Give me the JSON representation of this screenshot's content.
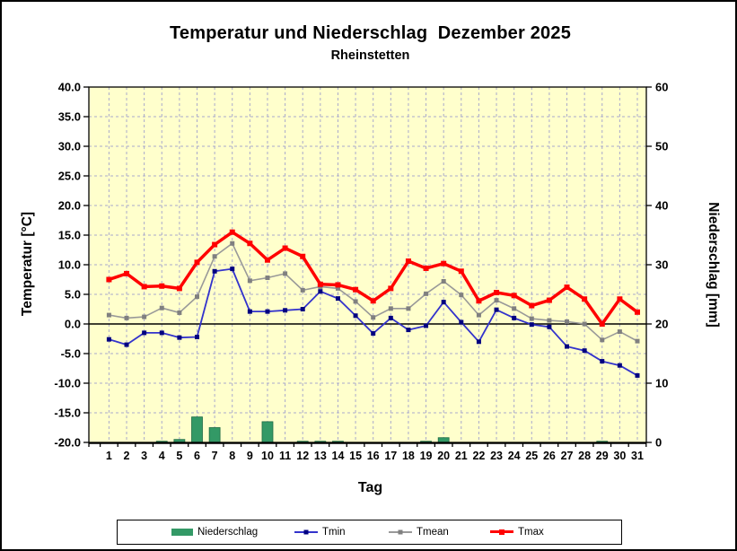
{
  "chart_data": {
    "type": "composite-bar-line",
    "title": "Temperatur und Niederschlag  Dezember 2025",
    "subtitle": "Rheinstetten",
    "xlabel": "Tag",
    "ylabel_left": "Temperatur [°C]",
    "ylabel_right": "Niederschlag [mm]",
    "x": [
      1,
      2,
      3,
      4,
      5,
      6,
      7,
      8,
      9,
      10,
      11,
      12,
      13,
      14,
      15,
      16,
      17,
      18,
      19,
      20,
      21,
      22,
      23,
      24,
      25,
      26,
      27,
      28,
      29,
      30,
      31
    ],
    "ylim_left": [
      -20.0,
      40.0
    ],
    "ytick_step_left": 5.0,
    "ylim_right": [
      0,
      60
    ],
    "ytick_step_right": 10,
    "grid": true,
    "plot_bg_color": "#FFFFCC",
    "grid_color": "#A9A9CB",
    "zero_line_color": "#000000",
    "legend_position": "bottom",
    "series": [
      {
        "name": "Niederschlag",
        "type": "bar",
        "axis": "right",
        "color": "#339966",
        "values": [
          0,
          0,
          0,
          0.2,
          0.5,
          4.3,
          2.5,
          0,
          0,
          3.5,
          0,
          0.2,
          0.2,
          0.2,
          0,
          0,
          0,
          0,
          0.2,
          0.8,
          0,
          0,
          0,
          0,
          0,
          0,
          0,
          0,
          0.2,
          0,
          0
        ]
      },
      {
        "name": "Tmin",
        "type": "line",
        "axis": "left",
        "color": "#3333CC",
        "marker_color": "#000080",
        "values": [
          -2.6,
          -3.5,
          -1.5,
          -1.5,
          -2.3,
          -2.2,
          8.9,
          9.3,
          2.1,
          2.1,
          2.3,
          2.5,
          5.5,
          4.3,
          1.4,
          -1.6,
          1.0,
          -1.0,
          -0.3,
          3.7,
          0.3,
          -3.0,
          2.4,
          1.0,
          -0.1,
          -0.5,
          -3.8,
          -4.5,
          -6.3,
          -7.0,
          -8.7
        ]
      },
      {
        "name": "Tmean",
        "type": "line",
        "axis": "left",
        "color": "#999999",
        "marker_color": "#808080",
        "values": [
          1.5,
          1.0,
          1.2,
          2.7,
          1.9,
          4.6,
          11.4,
          13.6,
          7.3,
          7.8,
          8.5,
          5.7,
          6.3,
          6.0,
          3.8,
          1.1,
          2.6,
          2.6,
          5.1,
          7.2,
          4.9,
          1.5,
          4.0,
          2.6,
          0.9,
          0.6,
          0.4,
          0.0,
          -2.7,
          -1.3,
          -2.9
        ]
      },
      {
        "name": "Tmax",
        "type": "line",
        "axis": "left",
        "color": "#FF0000",
        "marker_color": "#FF0000",
        "values": [
          7.5,
          8.5,
          6.3,
          6.4,
          6.0,
          10.4,
          13.4,
          15.5,
          13.6,
          10.8,
          12.8,
          11.4,
          6.7,
          6.6,
          5.8,
          3.9,
          6.0,
          10.6,
          9.4,
          10.2,
          8.9,
          3.9,
          5.3,
          4.8,
          3.1,
          4.0,
          6.2,
          4.2,
          0.0,
          4.2,
          2.0
        ]
      }
    ]
  }
}
